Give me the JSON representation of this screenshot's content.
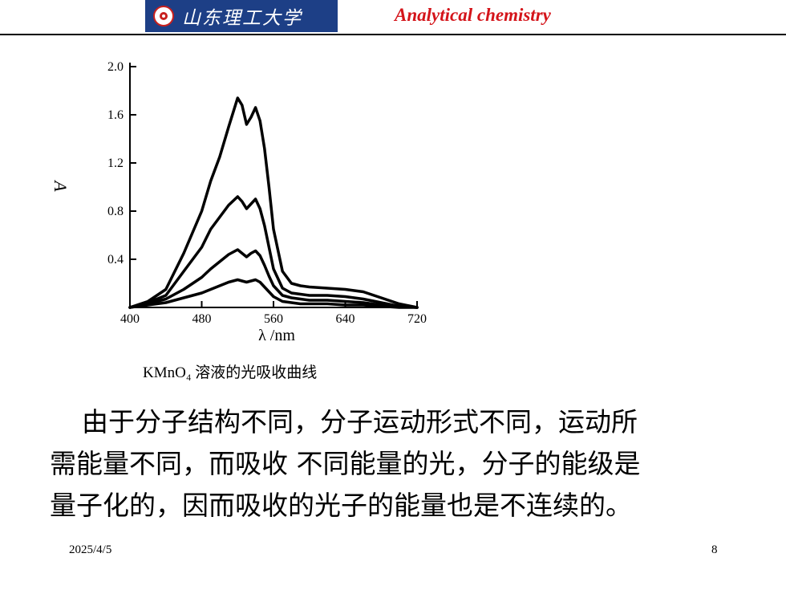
{
  "header": {
    "logo_text": "山东理工大学",
    "title": "Analytical chemistry",
    "brand_color": "#1d3f86",
    "title_color": "#d4141a"
  },
  "chart_data": {
    "type": "line",
    "xlabel": "λ /nm",
    "ylabel": "A",
    "caption": "KMnO₄ 溶液的光吸收曲线",
    "xlim": [
      400,
      720
    ],
    "ylim": [
      0,
      2.0
    ],
    "x_ticks": [
      "400",
      "480",
      "560",
      "640",
      "720"
    ],
    "y_ticks": [
      "0.4",
      "0.8",
      "1.2",
      "1.6",
      "2.0"
    ],
    "x": [
      400,
      420,
      440,
      460,
      480,
      490,
      500,
      510,
      520,
      525,
      530,
      535,
      540,
      545,
      550,
      555,
      560,
      570,
      580,
      590,
      600,
      620,
      640,
      660,
      680,
      700,
      720
    ],
    "series": [
      {
        "values": [
          0.0,
          0.05,
          0.15,
          0.45,
          0.8,
          1.05,
          1.25,
          1.5,
          1.74,
          1.68,
          1.52,
          1.58,
          1.66,
          1.55,
          1.32,
          1.0,
          0.65,
          0.3,
          0.2,
          0.18,
          0.17,
          0.16,
          0.15,
          0.13,
          0.08,
          0.03,
          0.0
        ]
      },
      {
        "values": [
          0.0,
          0.04,
          0.1,
          0.3,
          0.5,
          0.65,
          0.75,
          0.85,
          0.92,
          0.88,
          0.82,
          0.86,
          0.9,
          0.82,
          0.68,
          0.5,
          0.32,
          0.16,
          0.12,
          0.11,
          0.1,
          0.1,
          0.09,
          0.07,
          0.04,
          0.01,
          0.0
        ]
      },
      {
        "values": [
          0.0,
          0.03,
          0.07,
          0.15,
          0.25,
          0.32,
          0.38,
          0.44,
          0.48,
          0.45,
          0.42,
          0.45,
          0.47,
          0.43,
          0.35,
          0.26,
          0.18,
          0.1,
          0.08,
          0.07,
          0.06,
          0.06,
          0.05,
          0.04,
          0.02,
          0.01,
          0.0
        ]
      },
      {
        "values": [
          0.0,
          0.02,
          0.04,
          0.08,
          0.12,
          0.15,
          0.18,
          0.21,
          0.23,
          0.22,
          0.21,
          0.22,
          0.23,
          0.21,
          0.17,
          0.13,
          0.09,
          0.05,
          0.04,
          0.03,
          0.03,
          0.03,
          0.02,
          0.02,
          0.01,
          0.0,
          0.0
        ]
      }
    ]
  },
  "body": {
    "line1": "由于分子结构不同，分子运动形式不同，运动所",
    "line2": "需能量不同，而吸收 不同能量的光，分子的能级是",
    "line3": "量子化的，因而吸收的光子的能量也是不连续的。"
  },
  "footer": {
    "date": "2025/4/5",
    "page": "8"
  }
}
